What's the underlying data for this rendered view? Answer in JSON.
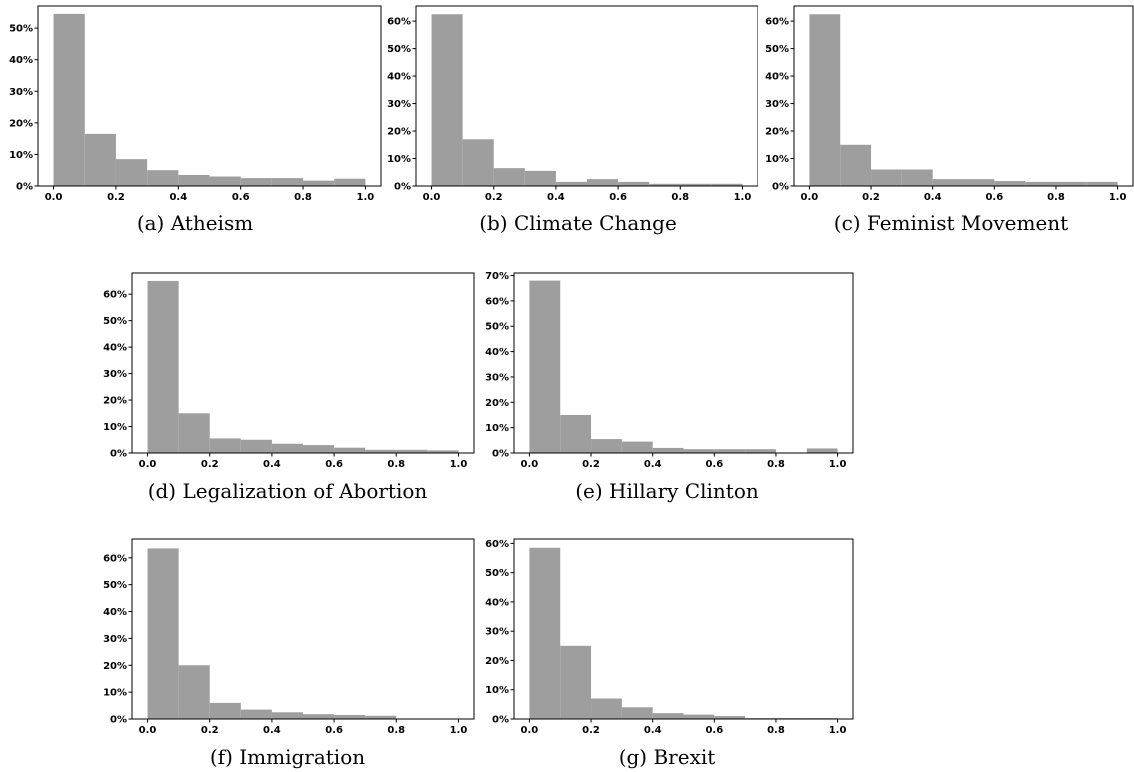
{
  "figure": {
    "captions": [
      "(a) Atheism",
      "(b) Climate Change",
      "(c) Feminist Movement",
      "(d) Legalization of Abortion",
      "(e) Hillary Clinton",
      "(f) Immigration",
      "(g) Brexit"
    ]
  },
  "chart_data": [
    {
      "type": "bar",
      "caption": "(a) Atheism",
      "bin_edges": [
        0.0,
        0.1,
        0.2,
        0.3,
        0.4,
        0.5,
        0.6,
        0.7,
        0.8,
        0.9,
        1.0
      ],
      "values": [
        54.5,
        16.5,
        8.5,
        5.0,
        3.5,
        3.0,
        2.5,
        2.5,
        1.7,
        2.3
      ],
      "xlim": [
        -0.05,
        1.05
      ],
      "ylim": [
        0,
        57
      ],
      "xticks": [
        "0.0",
        "0.2",
        "0.4",
        "0.6",
        "0.8",
        "1.0"
      ],
      "yticks": [
        "0%",
        "10%",
        "20%",
        "30%",
        "40%",
        "50%"
      ],
      "bar_color": "#9e9e9e",
      "grid": false
    },
    {
      "type": "bar",
      "caption": "(b) Climate Change",
      "bin_edges": [
        0.0,
        0.1,
        0.2,
        0.3,
        0.4,
        0.5,
        0.6,
        0.7,
        0.8,
        0.9,
        1.0
      ],
      "values": [
        62.5,
        17.0,
        6.5,
        5.5,
        1.5,
        2.5,
        1.5,
        0.8,
        0.8,
        0.8
      ],
      "xlim": [
        -0.05,
        1.05
      ],
      "ylim": [
        0,
        65.5
      ],
      "xticks": [
        "0.0",
        "0.2",
        "0.4",
        "0.6",
        "0.8",
        "1.0"
      ],
      "yticks": [
        "0%",
        "10%",
        "20%",
        "30%",
        "40%",
        "50%",
        "60%"
      ],
      "bar_color": "#9e9e9e",
      "grid": false
    },
    {
      "type": "bar",
      "caption": "(c) Feminist Movement",
      "bin_edges": [
        0.0,
        0.1,
        0.2,
        0.3,
        0.4,
        0.5,
        0.6,
        0.7,
        0.8,
        0.9,
        1.0
      ],
      "values": [
        62.5,
        15.0,
        6.0,
        6.0,
        2.5,
        2.5,
        1.8,
        1.5,
        1.5,
        1.5
      ],
      "xlim": [
        -0.05,
        1.05
      ],
      "ylim": [
        0,
        65.5
      ],
      "xticks": [
        "0.0",
        "0.2",
        "0.4",
        "0.6",
        "0.8",
        "1.0"
      ],
      "yticks": [
        "0%",
        "10%",
        "20%",
        "30%",
        "40%",
        "50%",
        "60%"
      ],
      "bar_color": "#9e9e9e",
      "grid": false
    },
    {
      "type": "bar",
      "caption": "(d) Legalization of Abortion",
      "bin_edges": [
        0.0,
        0.1,
        0.2,
        0.3,
        0.4,
        0.5,
        0.6,
        0.7,
        0.8,
        0.9,
        1.0
      ],
      "values": [
        65.0,
        15.0,
        5.5,
        5.0,
        3.5,
        3.0,
        2.0,
        1.2,
        1.2,
        1.0
      ],
      "xlim": [
        -0.05,
        1.05
      ],
      "ylim": [
        0,
        68
      ],
      "xticks": [
        "0.0",
        "0.2",
        "0.4",
        "0.6",
        "0.8",
        "1.0"
      ],
      "yticks": [
        "0%",
        "10%",
        "20%",
        "30%",
        "40%",
        "50%",
        "60%"
      ],
      "bar_color": "#9e9e9e",
      "grid": false
    },
    {
      "type": "bar",
      "caption": "(e) Hillary Clinton",
      "bin_edges": [
        0.0,
        0.1,
        0.2,
        0.3,
        0.4,
        0.5,
        0.6,
        0.7,
        0.8,
        0.9,
        1.0
      ],
      "values": [
        68.0,
        15.0,
        5.5,
        4.5,
        2.0,
        1.5,
        1.5,
        1.5,
        0.0,
        1.8
      ],
      "xlim": [
        -0.05,
        1.05
      ],
      "ylim": [
        0,
        71
      ],
      "xticks": [
        "0.0",
        "0.2",
        "0.4",
        "0.6",
        "0.8",
        "1.0"
      ],
      "yticks": [
        "0%",
        "10%",
        "20%",
        "30%",
        "40%",
        "50%",
        "60%",
        "70%"
      ],
      "bar_color": "#9e9e9e",
      "grid": false
    },
    {
      "type": "bar",
      "caption": "(f) Immigration",
      "bin_edges": [
        0.0,
        0.1,
        0.2,
        0.3,
        0.4,
        0.5,
        0.6,
        0.7,
        0.8,
        0.9,
        1.0
      ],
      "values": [
        63.5,
        20.0,
        6.0,
        3.5,
        2.5,
        1.8,
        1.5,
        1.2,
        0.0,
        0.0
      ],
      "xlim": [
        -0.05,
        1.05
      ],
      "ylim": [
        0,
        67
      ],
      "xticks": [
        "0.0",
        "0.2",
        "0.4",
        "0.6",
        "0.8",
        "1.0"
      ],
      "yticks": [
        "0%",
        "10%",
        "20%",
        "30%",
        "40%",
        "50%",
        "60%"
      ],
      "bar_color": "#9e9e9e",
      "grid": false
    },
    {
      "type": "bar",
      "caption": "(g) Brexit",
      "bin_edges": [
        0.0,
        0.1,
        0.2,
        0.3,
        0.4,
        0.5,
        0.6,
        0.7,
        0.8,
        0.9,
        1.0
      ],
      "values": [
        58.5,
        25.0,
        7.0,
        4.0,
        2.0,
        1.5,
        1.0,
        0.3,
        0.3,
        0.3
      ],
      "xlim": [
        -0.05,
        1.05
      ],
      "ylim": [
        0,
        61.5
      ],
      "xticks": [
        "0.0",
        "0.2",
        "0.4",
        "0.6",
        "0.8",
        "1.0"
      ],
      "yticks": [
        "0%",
        "10%",
        "20%",
        "30%",
        "40%",
        "50%",
        "60%"
      ],
      "bar_color": "#9e9e9e",
      "grid": false
    }
  ]
}
